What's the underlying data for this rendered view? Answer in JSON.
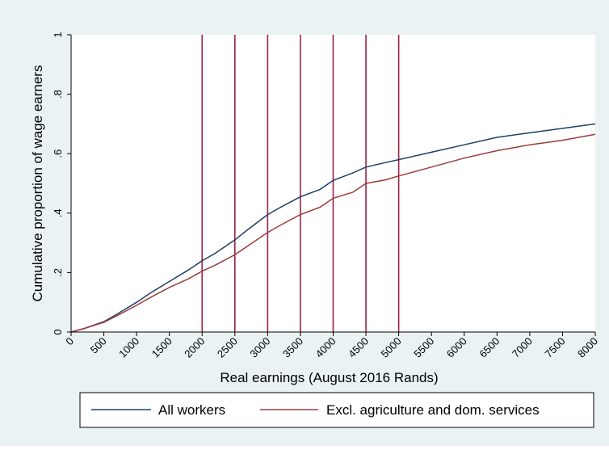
{
  "chart_data": {
    "type": "line",
    "title": "",
    "xlabel": "Real earnings (August 2016 Rands)",
    "ylabel": "Cumulative proportion of wage earners",
    "xlim": [
      0,
      8000
    ],
    "ylim": [
      0,
      1
    ],
    "x_ticks": [
      0,
      500,
      1000,
      1500,
      2000,
      2500,
      3000,
      3500,
      4000,
      4500,
      5000,
      5500,
      6000,
      6500,
      7000,
      7500,
      8000
    ],
    "x_tick_labels": [
      "0",
      "500",
      "1000",
      "1500",
      "2000",
      "2500",
      "3000",
      "3500",
      "4000",
      "4500",
      "5000",
      "5500",
      "6000",
      "6500",
      "7000",
      "7500",
      "8000"
    ],
    "y_ticks": [
      0,
      0.2,
      0.4,
      0.6,
      0.8,
      1
    ],
    "y_tick_labels": [
      "0",
      ".2",
      ".4",
      ".6",
      ".8",
      "1"
    ],
    "grid": false,
    "legend_position": "bottom",
    "vertical_reference_lines": {
      "x": [
        2000,
        2500,
        3000,
        3500,
        4000,
        4500,
        5000
      ],
      "color": "#9e1f45"
    },
    "series": [
      {
        "name": "All workers",
        "color": "#1f3f66",
        "x": [
          0,
          200,
          500,
          700,
          1000,
          1200,
          1500,
          1800,
          2000,
          2200,
          2500,
          2700,
          3000,
          3200,
          3500,
          3800,
          4000,
          4300,
          4500,
          4800,
          5000,
          5500,
          6000,
          6500,
          7000,
          7500,
          8000
        ],
        "y": [
          0,
          0.012,
          0.035,
          0.06,
          0.1,
          0.13,
          0.17,
          0.21,
          0.24,
          0.265,
          0.31,
          0.345,
          0.395,
          0.42,
          0.455,
          0.48,
          0.51,
          0.535,
          0.555,
          0.57,
          0.58,
          0.605,
          0.63,
          0.655,
          0.67,
          0.685,
          0.7
        ]
      },
      {
        "name": "Excl. agriculture and dom. services",
        "color": "#9b3c3c",
        "x": [
          0,
          200,
          500,
          700,
          1000,
          1200,
          1500,
          1800,
          2000,
          2200,
          2500,
          2700,
          3000,
          3200,
          3500,
          3800,
          4000,
          4300,
          4500,
          4800,
          5000,
          5500,
          6000,
          6500,
          7000,
          7500,
          8000
        ],
        "y": [
          0,
          0.012,
          0.033,
          0.055,
          0.09,
          0.115,
          0.15,
          0.18,
          0.205,
          0.225,
          0.26,
          0.29,
          0.335,
          0.36,
          0.395,
          0.42,
          0.45,
          0.47,
          0.5,
          0.512,
          0.525,
          0.555,
          0.585,
          0.61,
          0.63,
          0.645,
          0.665
        ]
      }
    ]
  },
  "legend": {
    "items": [
      {
        "label": "All workers",
        "color": "#1f3f66"
      },
      {
        "label": "Excl. agriculture and dom. services",
        "color": "#9b3c3c"
      }
    ]
  }
}
